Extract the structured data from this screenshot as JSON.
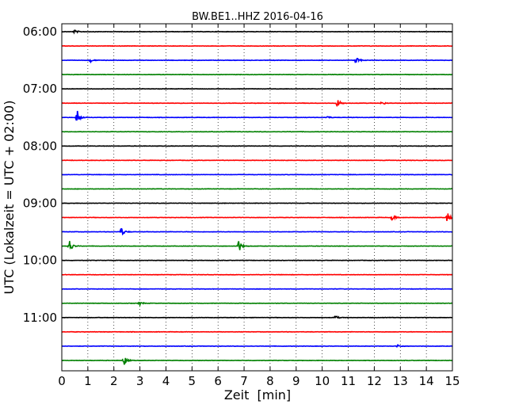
{
  "chart_data": {
    "type": "line",
    "title": "BW.BE1..HHZ 2016-04-16",
    "xlabel": "Zeit  [min]",
    "ylabel": "UTC (Lokalzeit = UTC + 02:00)",
    "xlim": [
      0,
      15
    ],
    "x_ticks": [
      "0",
      "1",
      "2",
      "3",
      "4",
      "5",
      "6",
      "7",
      "8",
      "9",
      "10",
      "11",
      "12",
      "13",
      "14",
      "15"
    ],
    "y_ticks": [
      "06:00",
      "07:00",
      "08:00",
      "09:00",
      "10:00",
      "11:00"
    ],
    "trace_start_times": [
      "06:00",
      "06:15",
      "06:30",
      "06:45",
      "07:00",
      "07:15",
      "07:30",
      "07:45",
      "08:00",
      "08:15",
      "08:30",
      "08:45",
      "09:00",
      "09:15",
      "09:30",
      "09:45",
      "10:00",
      "10:15",
      "10:30",
      "10:45",
      "11:00",
      "11:15",
      "11:30",
      "11:45"
    ],
    "trace_colors": [
      "#000000",
      "#ff0000",
      "#0000ff",
      "#008000"
    ],
    "grid": true,
    "events": [
      {
        "trace": "06:00",
        "minute": 0.5,
        "amplitude": 0.4
      },
      {
        "trace": "06:30",
        "minute": 1.1,
        "amplitude": 0.4
      },
      {
        "trace": "06:30",
        "minute": 11.3,
        "amplitude": 1.0
      },
      {
        "trace": "07:15",
        "minute": 10.6,
        "amplitude": 1.0
      },
      {
        "trace": "07:15",
        "minute": 12.3,
        "amplitude": 0.4
      },
      {
        "trace": "07:30",
        "minute": 0.6,
        "amplitude": 1.6
      },
      {
        "trace": "07:30",
        "minute": 10.2,
        "amplitude": 0.3
      },
      {
        "trace": "09:15",
        "minute": 12.7,
        "amplitude": 0.8
      },
      {
        "trace": "09:15",
        "minute": 14.8,
        "amplitude": 1.2
      },
      {
        "trace": "09:30",
        "minute": 2.3,
        "amplitude": 1.0
      },
      {
        "trace": "09:45",
        "minute": 0.3,
        "amplitude": 1.4
      },
      {
        "trace": "09:45",
        "minute": 6.8,
        "amplitude": 1.4
      },
      {
        "trace": "10:45",
        "minute": 3.0,
        "amplitude": 0.4
      },
      {
        "trace": "11:00",
        "minute": 10.5,
        "amplitude": 0.5
      },
      {
        "trace": "11:30",
        "minute": 12.9,
        "amplitude": 0.4
      },
      {
        "trace": "11:45",
        "minute": 2.4,
        "amplitude": 1.0
      }
    ]
  }
}
